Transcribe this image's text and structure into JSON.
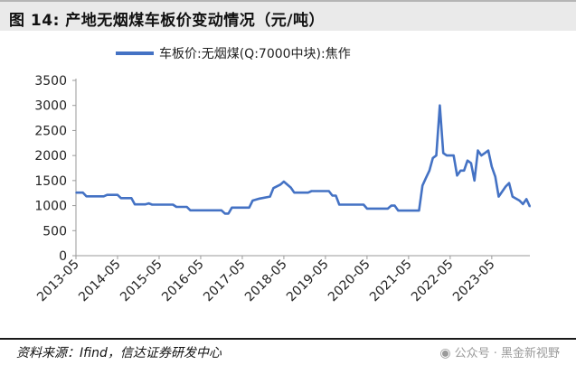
{
  "header": {
    "title": "图 14:  产地无烟煤车板价变动情况（元/吨）"
  },
  "footer": {
    "source": "资料来源：Ifind，信达证券研发中心",
    "watermark": "公众号 · 黑金新视野"
  },
  "colors": {
    "series": "#4472c4",
    "title_band": "#eaeaea"
  },
  "chart_data": {
    "type": "line",
    "title": "",
    "xlabel": "",
    "ylabel": "",
    "ylim": [
      0,
      3500
    ],
    "yticks": [
      0,
      500,
      1000,
      1500,
      2000,
      2500,
      3000,
      3500
    ],
    "xlim": [
      "2013-05",
      "2024-04"
    ],
    "xticks": [
      "2013-05",
      "2014-05",
      "2015-05",
      "2016-05",
      "2017-05",
      "2018-05",
      "2019-05",
      "2020-05",
      "2021-05",
      "2022-05",
      "2023-05"
    ],
    "grid": false,
    "legend": "top-center",
    "series": [
      {
        "name": "车板价:无烟煤(Q:7000中块):焦作",
        "points": [
          [
            "2013-05",
            1260
          ],
          [
            "2013-07",
            1260
          ],
          [
            "2013-08",
            1185
          ],
          [
            "2014-01",
            1185
          ],
          [
            "2014-02",
            1215
          ],
          [
            "2014-05",
            1215
          ],
          [
            "2014-06",
            1150
          ],
          [
            "2014-09",
            1150
          ],
          [
            "2014-10",
            1025
          ],
          [
            "2015-01",
            1025
          ],
          [
            "2015-02",
            1045
          ],
          [
            "2015-03",
            1020
          ],
          [
            "2015-09",
            1020
          ],
          [
            "2015-10",
            975
          ],
          [
            "2016-01",
            975
          ],
          [
            "2016-02",
            905
          ],
          [
            "2016-11",
            905
          ],
          [
            "2016-12",
            840
          ],
          [
            "2017-01",
            840
          ],
          [
            "2017-02",
            960
          ],
          [
            "2017-07",
            960
          ],
          [
            "2017-08",
            1100
          ],
          [
            "2017-10",
            1140
          ],
          [
            "2018-01",
            1180
          ],
          [
            "2018-02",
            1350
          ],
          [
            "2018-04",
            1420
          ],
          [
            "2018-05",
            1480
          ],
          [
            "2018-07",
            1360
          ],
          [
            "2018-08",
            1260
          ],
          [
            "2018-12",
            1260
          ],
          [
            "2019-01",
            1290
          ],
          [
            "2019-06",
            1290
          ],
          [
            "2019-07",
            1200
          ],
          [
            "2019-08",
            1200
          ],
          [
            "2019-09",
            1020
          ],
          [
            "2020-04",
            1020
          ],
          [
            "2020-05",
            940
          ],
          [
            "2020-11",
            940
          ],
          [
            "2020-12",
            1000
          ],
          [
            "2021-01",
            1000
          ],
          [
            "2021-02",
            900
          ],
          [
            "2021-08",
            900
          ],
          [
            "2021-09",
            1400
          ],
          [
            "2021-10",
            1550
          ],
          [
            "2021-11",
            1700
          ],
          [
            "2021-12",
            1950
          ],
          [
            "2022-01",
            2000
          ],
          [
            "2022-02",
            3000
          ],
          [
            "2022-03",
            2050
          ],
          [
            "2022-04",
            2000
          ],
          [
            "2022-06",
            2000
          ],
          [
            "2022-07",
            1600
          ],
          [
            "2022-08",
            1700
          ],
          [
            "2022-09",
            1700
          ],
          [
            "2022-10",
            1900
          ],
          [
            "2022-11",
            1850
          ],
          [
            "2022-12",
            1500
          ],
          [
            "2023-01",
            2100
          ],
          [
            "2023-02",
            2000
          ],
          [
            "2023-03",
            2050
          ],
          [
            "2023-04",
            2100
          ],
          [
            "2023-05",
            1780
          ],
          [
            "2023-06",
            1580
          ],
          [
            "2023-07",
            1180
          ],
          [
            "2023-08",
            1280
          ],
          [
            "2023-09",
            1380
          ],
          [
            "2023-10",
            1450
          ],
          [
            "2023-11",
            1180
          ],
          [
            "2024-01",
            1100
          ],
          [
            "2024-02",
            1030
          ],
          [
            "2024-03",
            1130
          ],
          [
            "2024-04",
            980
          ]
        ]
      }
    ]
  }
}
